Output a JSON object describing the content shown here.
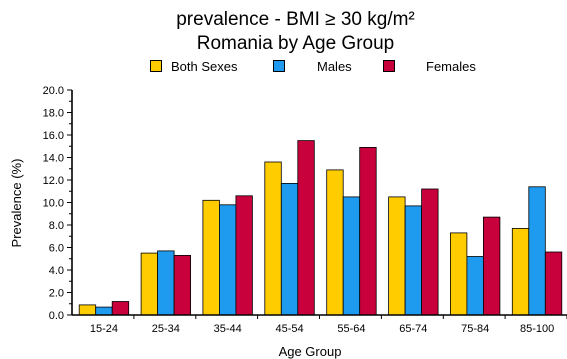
{
  "chart_data": {
    "type": "bar",
    "title": "prevalence - BMI ≥ 30 kg/m²",
    "subtitle": "Romania by Age Group",
    "xlabel": "Age Group",
    "ylabel": "Prevalence (%)",
    "ylim": [
      0,
      20
    ],
    "yticks": [
      "0.0",
      "2.0",
      "4.0",
      "6.0",
      "8.0",
      "10.0",
      "12.0",
      "14.0",
      "16.0",
      "18.0",
      "20.0"
    ],
    "categories": [
      "15-24",
      "25-34",
      "35-44",
      "45-54",
      "55-64",
      "65-74",
      "75-84",
      "85-100"
    ],
    "series": [
      {
        "name": "Both Sexes",
        "color": "#ffcc00",
        "values": [
          0.9,
          5.5,
          10.2,
          13.6,
          12.9,
          10.5,
          7.3,
          7.7
        ]
      },
      {
        "name": "Males",
        "color": "#1e9bef",
        "values": [
          0.7,
          5.7,
          9.8,
          11.7,
          10.5,
          9.7,
          5.2,
          11.4
        ]
      },
      {
        "name": "Females",
        "color": "#c8003c",
        "values": [
          1.2,
          5.3,
          10.6,
          15.5,
          14.9,
          11.2,
          8.7,
          5.6
        ]
      }
    ],
    "grid": false,
    "legend_position": "top"
  }
}
